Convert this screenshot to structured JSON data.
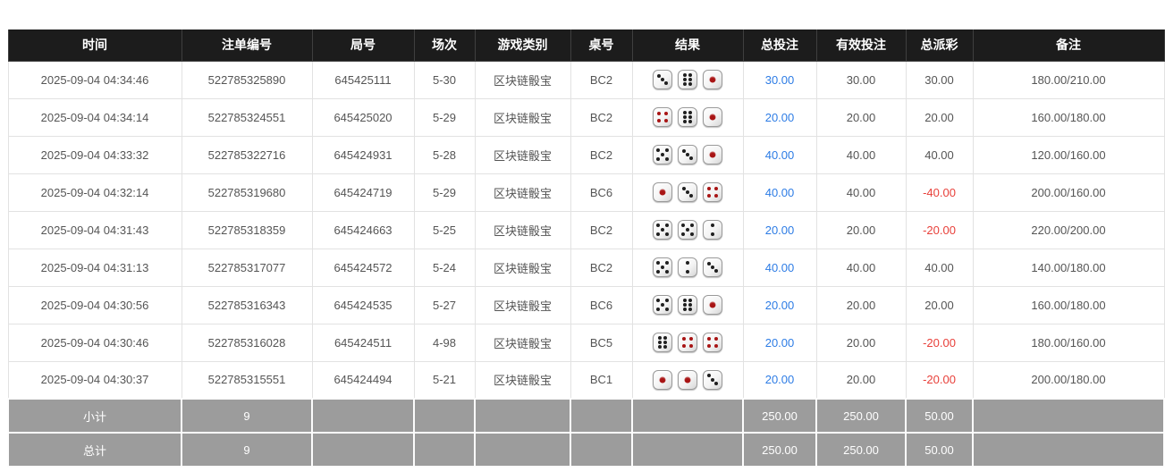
{
  "table": {
    "columns": [
      "时间",
      "注单编号",
      "局号",
      "场次",
      "游戏类别",
      "桌号",
      "结果",
      "总投注",
      "有效投注",
      "总派彩",
      "备注"
    ],
    "rows": [
      {
        "time": "2025-09-04 04:34:46",
        "bet_id": "522785325890",
        "round_id": "645425111",
        "session": "5-30",
        "game_type": "区块链骰宝",
        "table_id": "BC2",
        "dice": [
          3,
          6,
          1
        ],
        "total_bet": "30.00",
        "valid_bet": "30.00",
        "payout": "30.00",
        "remark": "180.00/210.00"
      },
      {
        "time": "2025-09-04 04:34:14",
        "bet_id": "522785324551",
        "round_id": "645425020",
        "session": "5-29",
        "game_type": "区块链骰宝",
        "table_id": "BC2",
        "dice": [
          4,
          6,
          1
        ],
        "total_bet": "20.00",
        "valid_bet": "20.00",
        "payout": "20.00",
        "remark": "160.00/180.00"
      },
      {
        "time": "2025-09-04 04:33:32",
        "bet_id": "522785322716",
        "round_id": "645424931",
        "session": "5-28",
        "game_type": "区块链骰宝",
        "table_id": "BC2",
        "dice": [
          5,
          3,
          1
        ],
        "total_bet": "40.00",
        "valid_bet": "40.00",
        "payout": "40.00",
        "remark": "120.00/160.00"
      },
      {
        "time": "2025-09-04 04:32:14",
        "bet_id": "522785319680",
        "round_id": "645424719",
        "session": "5-29",
        "game_type": "区块链骰宝",
        "table_id": "BC6",
        "dice": [
          1,
          3,
          4
        ],
        "total_bet": "40.00",
        "valid_bet": "40.00",
        "payout": "-40.00",
        "remark": "200.00/160.00"
      },
      {
        "time": "2025-09-04 04:31:43",
        "bet_id": "522785318359",
        "round_id": "645424663",
        "session": "5-25",
        "game_type": "区块链骰宝",
        "table_id": "BC2",
        "dice": [
          5,
          5,
          2
        ],
        "total_bet": "20.00",
        "valid_bet": "20.00",
        "payout": "-20.00",
        "remark": "220.00/200.00"
      },
      {
        "time": "2025-09-04 04:31:13",
        "bet_id": "522785317077",
        "round_id": "645424572",
        "session": "5-24",
        "game_type": "区块链骰宝",
        "table_id": "BC2",
        "dice": [
          5,
          2,
          3
        ],
        "total_bet": "40.00",
        "valid_bet": "40.00",
        "payout": "40.00",
        "remark": "140.00/180.00"
      },
      {
        "time": "2025-09-04 04:30:56",
        "bet_id": "522785316343",
        "round_id": "645424535",
        "session": "5-27",
        "game_type": "区块链骰宝",
        "table_id": "BC6",
        "dice": [
          5,
          6,
          1
        ],
        "total_bet": "20.00",
        "valid_bet": "20.00",
        "payout": "20.00",
        "remark": "160.00/180.00"
      },
      {
        "time": "2025-09-04 04:30:46",
        "bet_id": "522785316028",
        "round_id": "645424511",
        "session": "4-98",
        "game_type": "区块链骰宝",
        "table_id": "BC5",
        "dice": [
          6,
          4,
          4
        ],
        "total_bet": "20.00",
        "valid_bet": "20.00",
        "payout": "-20.00",
        "remark": "180.00/160.00"
      },
      {
        "time": "2025-09-04 04:30:37",
        "bet_id": "522785315551",
        "round_id": "645424494",
        "session": "5-21",
        "game_type": "区块链骰宝",
        "table_id": "BC1",
        "dice": [
          1,
          1,
          3
        ],
        "total_bet": "20.00",
        "valid_bet": "20.00",
        "payout": "-20.00",
        "remark": "200.00/180.00"
      }
    ],
    "footer": [
      {
        "label": "小计",
        "count": "9",
        "total_bet": "250.00",
        "valid_bet": "250.00",
        "payout": "50.00"
      },
      {
        "label": "总计",
        "count": "9",
        "total_bet": "250.00",
        "valid_bet": "250.00",
        "payout": "50.00"
      }
    ]
  },
  "colors": {
    "header_bg": "#1c1c1c",
    "link_blue": "#2d7ce5",
    "negative_red": "#e8403a",
    "footer_bg": "#9c9c9c",
    "pip_black": "#1f1f1f",
    "pip_red": "#a81414"
  }
}
